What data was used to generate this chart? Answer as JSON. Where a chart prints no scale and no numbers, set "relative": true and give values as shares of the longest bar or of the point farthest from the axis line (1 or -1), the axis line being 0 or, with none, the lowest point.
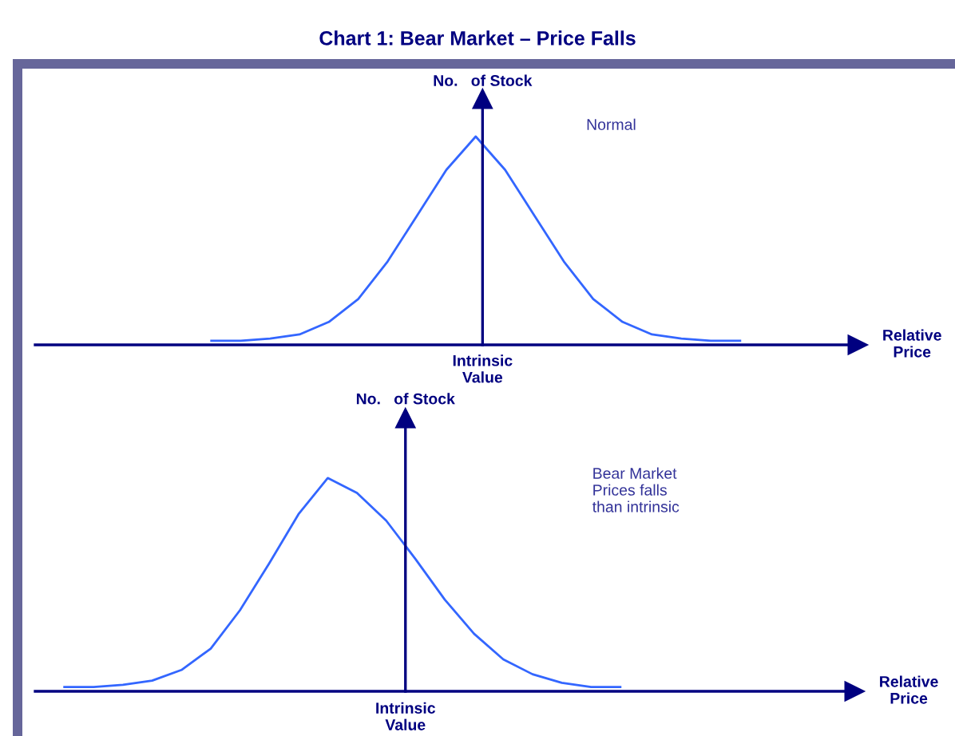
{
  "chart_data": [
    {
      "type": "line",
      "relative": true,
      "title": "Chart 1: Bear Market – Price Falls",
      "ylabel": "No.   of Stock",
      "xlabel": "Relative\nPrice",
      "annotations": [
        "Intrinsic\nValue",
        "Normal"
      ],
      "categories": [
        null,
        null,
        null,
        null,
        null,
        null,
        null,
        null,
        null,
        null,
        null,
        null,
        null,
        null,
        null,
        null,
        null,
        null,
        null,
        null,
        null,
        null,
        null,
        null,
        null,
        null,
        null,
        null
      ],
      "series": [
        {
          "color": "#3366ff",
          "values": [
            null,
            null,
            null,
            null,
            null,
            0.02,
            0.02,
            0.03,
            0.05,
            0.11,
            0.22,
            0.4,
            0.62,
            0.84,
            1.0,
            0.84,
            0.62,
            0.4,
            0.22,
            0.11,
            0.05,
            0.03,
            0.02,
            0.02,
            null,
            null,
            null,
            null
          ]
        }
      ]
    },
    {
      "type": "line",
      "relative": true,
      "ylabel": "No.   of Stock",
      "xlabel": "Relative\nPrice",
      "annotations": [
        "Intrinsic\nValue",
        "Bear Market\nPrices falls\nthan intrinsic"
      ],
      "categories": [
        null,
        null,
        null,
        null,
        null,
        null,
        null,
        null,
        null,
        null,
        null,
        null,
        null,
        null,
        null,
        null,
        null,
        null,
        null,
        null,
        null,
        null,
        null,
        null,
        null,
        null,
        null,
        null
      ],
      "series": [
        {
          "color": "#3366ff",
          "values": [
            0.02,
            0.02,
            0.03,
            0.05,
            0.1,
            0.2,
            0.38,
            0.6,
            0.83,
            1.0,
            0.93,
            0.8,
            0.62,
            0.43,
            0.27,
            0.15,
            0.08,
            0.04,
            0.02,
            0.02,
            null,
            null,
            null,
            null,
            null,
            null,
            null,
            null
          ]
        }
      ]
    }
  ]
}
